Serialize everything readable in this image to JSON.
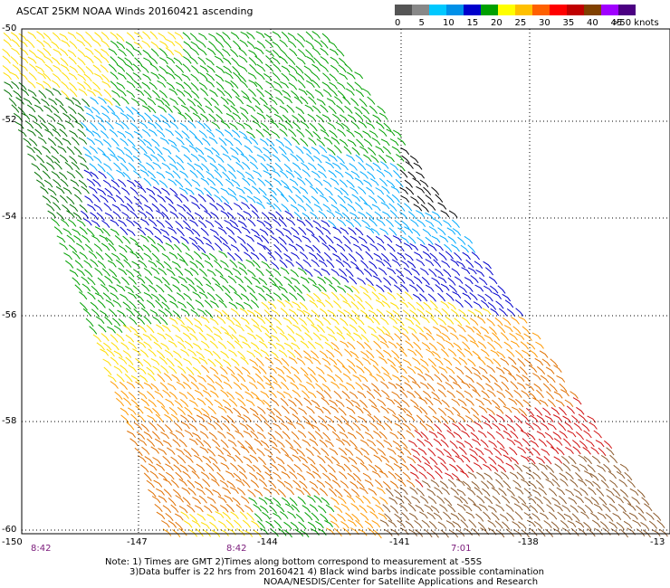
{
  "title": "ASCAT 25KM NOAA Winds 20160421 ascending",
  "colorbar": {
    "labels": [
      "0",
      "5",
      "10",
      "15",
      "20",
      "25",
      "30",
      "35",
      "40",
      "45",
      ">50 knots"
    ],
    "colors": [
      "#555555",
      "#888888",
      "#00c8ff",
      "#0090e8",
      "#0000cc",
      "#00a000",
      "#ffff00",
      "#ffc000",
      "#ff6000",
      "#ff0000",
      "#c00000",
      "#804000",
      "#a000ff",
      "#4b0082"
    ]
  },
  "lat_labels": [
    "-50",
    "-52",
    "-54",
    "-56",
    "-58",
    "-60"
  ],
  "lon_labels": [
    "-150",
    "-147",
    "-144",
    "-141",
    "-138",
    "-13"
  ],
  "times": [
    "8:42",
    "8:42",
    "7:01"
  ],
  "notes": [
    "Note: 1) Times are GMT 2)Times along bottom correspond to measurement at -55S",
    "3)Data buffer is 22 hrs from 20160421 4) Black wind barbs indicate possible contamination",
    "NOAA/NESDIS/Center for Satellite Applications and Research"
  ],
  "barb_colors": {
    "yellow": "#ffdd00",
    "orange": "#ff9900",
    "darkorange": "#e07000",
    "red": "#d01010",
    "crimson": "#c00030",
    "brown": "#8b5a2b",
    "green": "#00a000",
    "darkgreen": "#007000",
    "blue": "#0000cc",
    "lightblue": "#00aaff",
    "black": "#000000"
  }
}
